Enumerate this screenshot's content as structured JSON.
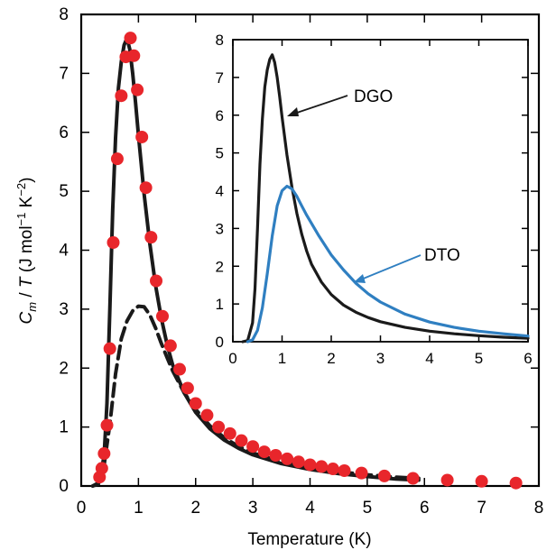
{
  "chart_data": [
    {
      "type": "line",
      "panel": "main",
      "xlabel": "Temperature (K)",
      "ylabel": {
        "c": "C",
        "sub": "m",
        "mid": " / ",
        "t": "T",
        "unit_open": " (J mol",
        "e1": "−1",
        "k": " K",
        "e2": "−2",
        "unit_close": ")"
      },
      "xlim": [
        0,
        8
      ],
      "ylim": [
        0,
        8
      ],
      "xticks": [
        "0",
        "1",
        "2",
        "3",
        "4",
        "5",
        "6",
        "7",
        "8"
      ],
      "yticks": [
        "0",
        "1",
        "2",
        "3",
        "4",
        "5",
        "6",
        "7",
        "8"
      ],
      "grid": false,
      "series": [
        {
          "style": "markers",
          "color": "#e8262b",
          "x": [
            0.32,
            0.36,
            0.4,
            0.45,
            0.5,
            0.56,
            0.63,
            0.7,
            0.78,
            0.86,
            0.92,
            0.98,
            1.06,
            1.13,
            1.22,
            1.31,
            1.42,
            1.56,
            1.72,
            1.86,
            2.0,
            2.2,
            2.4,
            2.6,
            2.8,
            3.0,
            3.2,
            3.4,
            3.6,
            3.8,
            4.0,
            4.2,
            4.4,
            4.6,
            4.9,
            5.3,
            5.8,
            6.4,
            7.0,
            7.6
          ],
          "y": [
            0.15,
            0.3,
            0.55,
            1.03,
            2.33,
            4.13,
            5.55,
            6.62,
            7.28,
            7.6,
            7.3,
            6.72,
            5.92,
            5.06,
            4.22,
            3.48,
            2.88,
            2.38,
            1.98,
            1.66,
            1.4,
            1.2,
            1.0,
            0.89,
            0.77,
            0.67,
            0.58,
            0.52,
            0.46,
            0.41,
            0.36,
            0.33,
            0.29,
            0.26,
            0.22,
            0.17,
            0.13,
            0.1,
            0.08,
            0.05
          ]
        },
        {
          "style": "solid",
          "color": "#1a1a1a",
          "x": [
            0.2,
            0.3,
            0.4,
            0.45,
            0.5,
            0.55,
            0.6,
            0.65,
            0.7,
            0.75,
            0.8,
            0.85,
            0.9,
            0.95,
            1.0,
            1.1,
            1.2,
            1.3,
            1.4,
            1.5,
            1.6,
            1.8,
            2.0,
            2.25,
            2.5,
            2.75,
            3.0,
            3.5,
            4.0,
            4.5,
            5.0,
            5.5,
            5.9
          ],
          "y": [
            0.0,
            0.03,
            0.5,
            1.4,
            3.0,
            4.7,
            5.9,
            6.75,
            7.2,
            7.48,
            7.6,
            7.4,
            7.0,
            6.5,
            5.95,
            4.95,
            4.1,
            3.4,
            2.85,
            2.4,
            2.05,
            1.58,
            1.25,
            0.97,
            0.78,
            0.64,
            0.53,
            0.38,
            0.28,
            0.21,
            0.16,
            0.12,
            0.1
          ]
        },
        {
          "style": "dashed",
          "color": "#1a1a1a",
          "x": [
            0.2,
            0.3,
            0.4,
            0.5,
            0.6,
            0.7,
            0.8,
            0.9,
            1.0,
            1.1,
            1.2,
            1.3,
            1.4,
            1.5,
            1.6,
            1.8,
            2.0,
            2.25,
            2.5,
            2.75,
            3.0,
            3.5,
            4.0,
            4.5,
            5.0,
            5.5,
            5.9
          ],
          "y": [
            0.0,
            0.05,
            0.35,
            1.05,
            1.9,
            2.5,
            2.8,
            2.97,
            3.05,
            3.04,
            2.9,
            2.68,
            2.42,
            2.18,
            1.95,
            1.58,
            1.3,
            1.02,
            0.82,
            0.67,
            0.56,
            0.41,
            0.31,
            0.24,
            0.19,
            0.15,
            0.13
          ]
        }
      ]
    },
    {
      "type": "line",
      "panel": "inset",
      "xlim": [
        0,
        6
      ],
      "ylim": [
        0,
        8
      ],
      "xticks": [
        "0",
        "1",
        "2",
        "3",
        "4",
        "5",
        "6"
      ],
      "yticks": [
        "0",
        "1",
        "2",
        "3",
        "4",
        "5",
        "6",
        "7",
        "8"
      ],
      "annotations": [
        "DGO",
        "DTO"
      ],
      "series": [
        {
          "name": "DGO",
          "color": "#1a1a1a",
          "x": [
            0.2,
            0.3,
            0.4,
            0.45,
            0.5,
            0.55,
            0.6,
            0.65,
            0.7,
            0.75,
            0.8,
            0.85,
            0.9,
            0.95,
            1.0,
            1.1,
            1.2,
            1.3,
            1.4,
            1.5,
            1.6,
            1.8,
            2.0,
            2.25,
            2.5,
            2.75,
            3.0,
            3.5,
            4.0,
            4.5,
            5.0,
            5.5,
            6.0
          ],
          "y": [
            0.0,
            0.03,
            0.5,
            1.4,
            3.0,
            4.7,
            5.9,
            6.75,
            7.2,
            7.48,
            7.6,
            7.4,
            7.0,
            6.5,
            5.95,
            4.95,
            4.1,
            3.4,
            2.85,
            2.4,
            2.05,
            1.58,
            1.25,
            0.97,
            0.78,
            0.64,
            0.53,
            0.38,
            0.28,
            0.21,
            0.16,
            0.12,
            0.09
          ]
        },
        {
          "name": "DTO",
          "color": "#2f7fc1",
          "x": [
            0.3,
            0.4,
            0.5,
            0.6,
            0.7,
            0.8,
            0.9,
            1.0,
            1.1,
            1.2,
            1.3,
            1.4,
            1.5,
            1.75,
            2.0,
            2.25,
            2.5,
            2.75,
            3.0,
            3.5,
            4.0,
            4.5,
            5.0,
            5.5,
            6.0
          ],
          "y": [
            0.0,
            0.05,
            0.3,
            0.9,
            1.8,
            2.8,
            3.6,
            4.0,
            4.12,
            4.05,
            3.85,
            3.6,
            3.35,
            2.8,
            2.3,
            1.9,
            1.55,
            1.27,
            1.05,
            0.73,
            0.52,
            0.38,
            0.28,
            0.21,
            0.15
          ]
        }
      ]
    }
  ]
}
